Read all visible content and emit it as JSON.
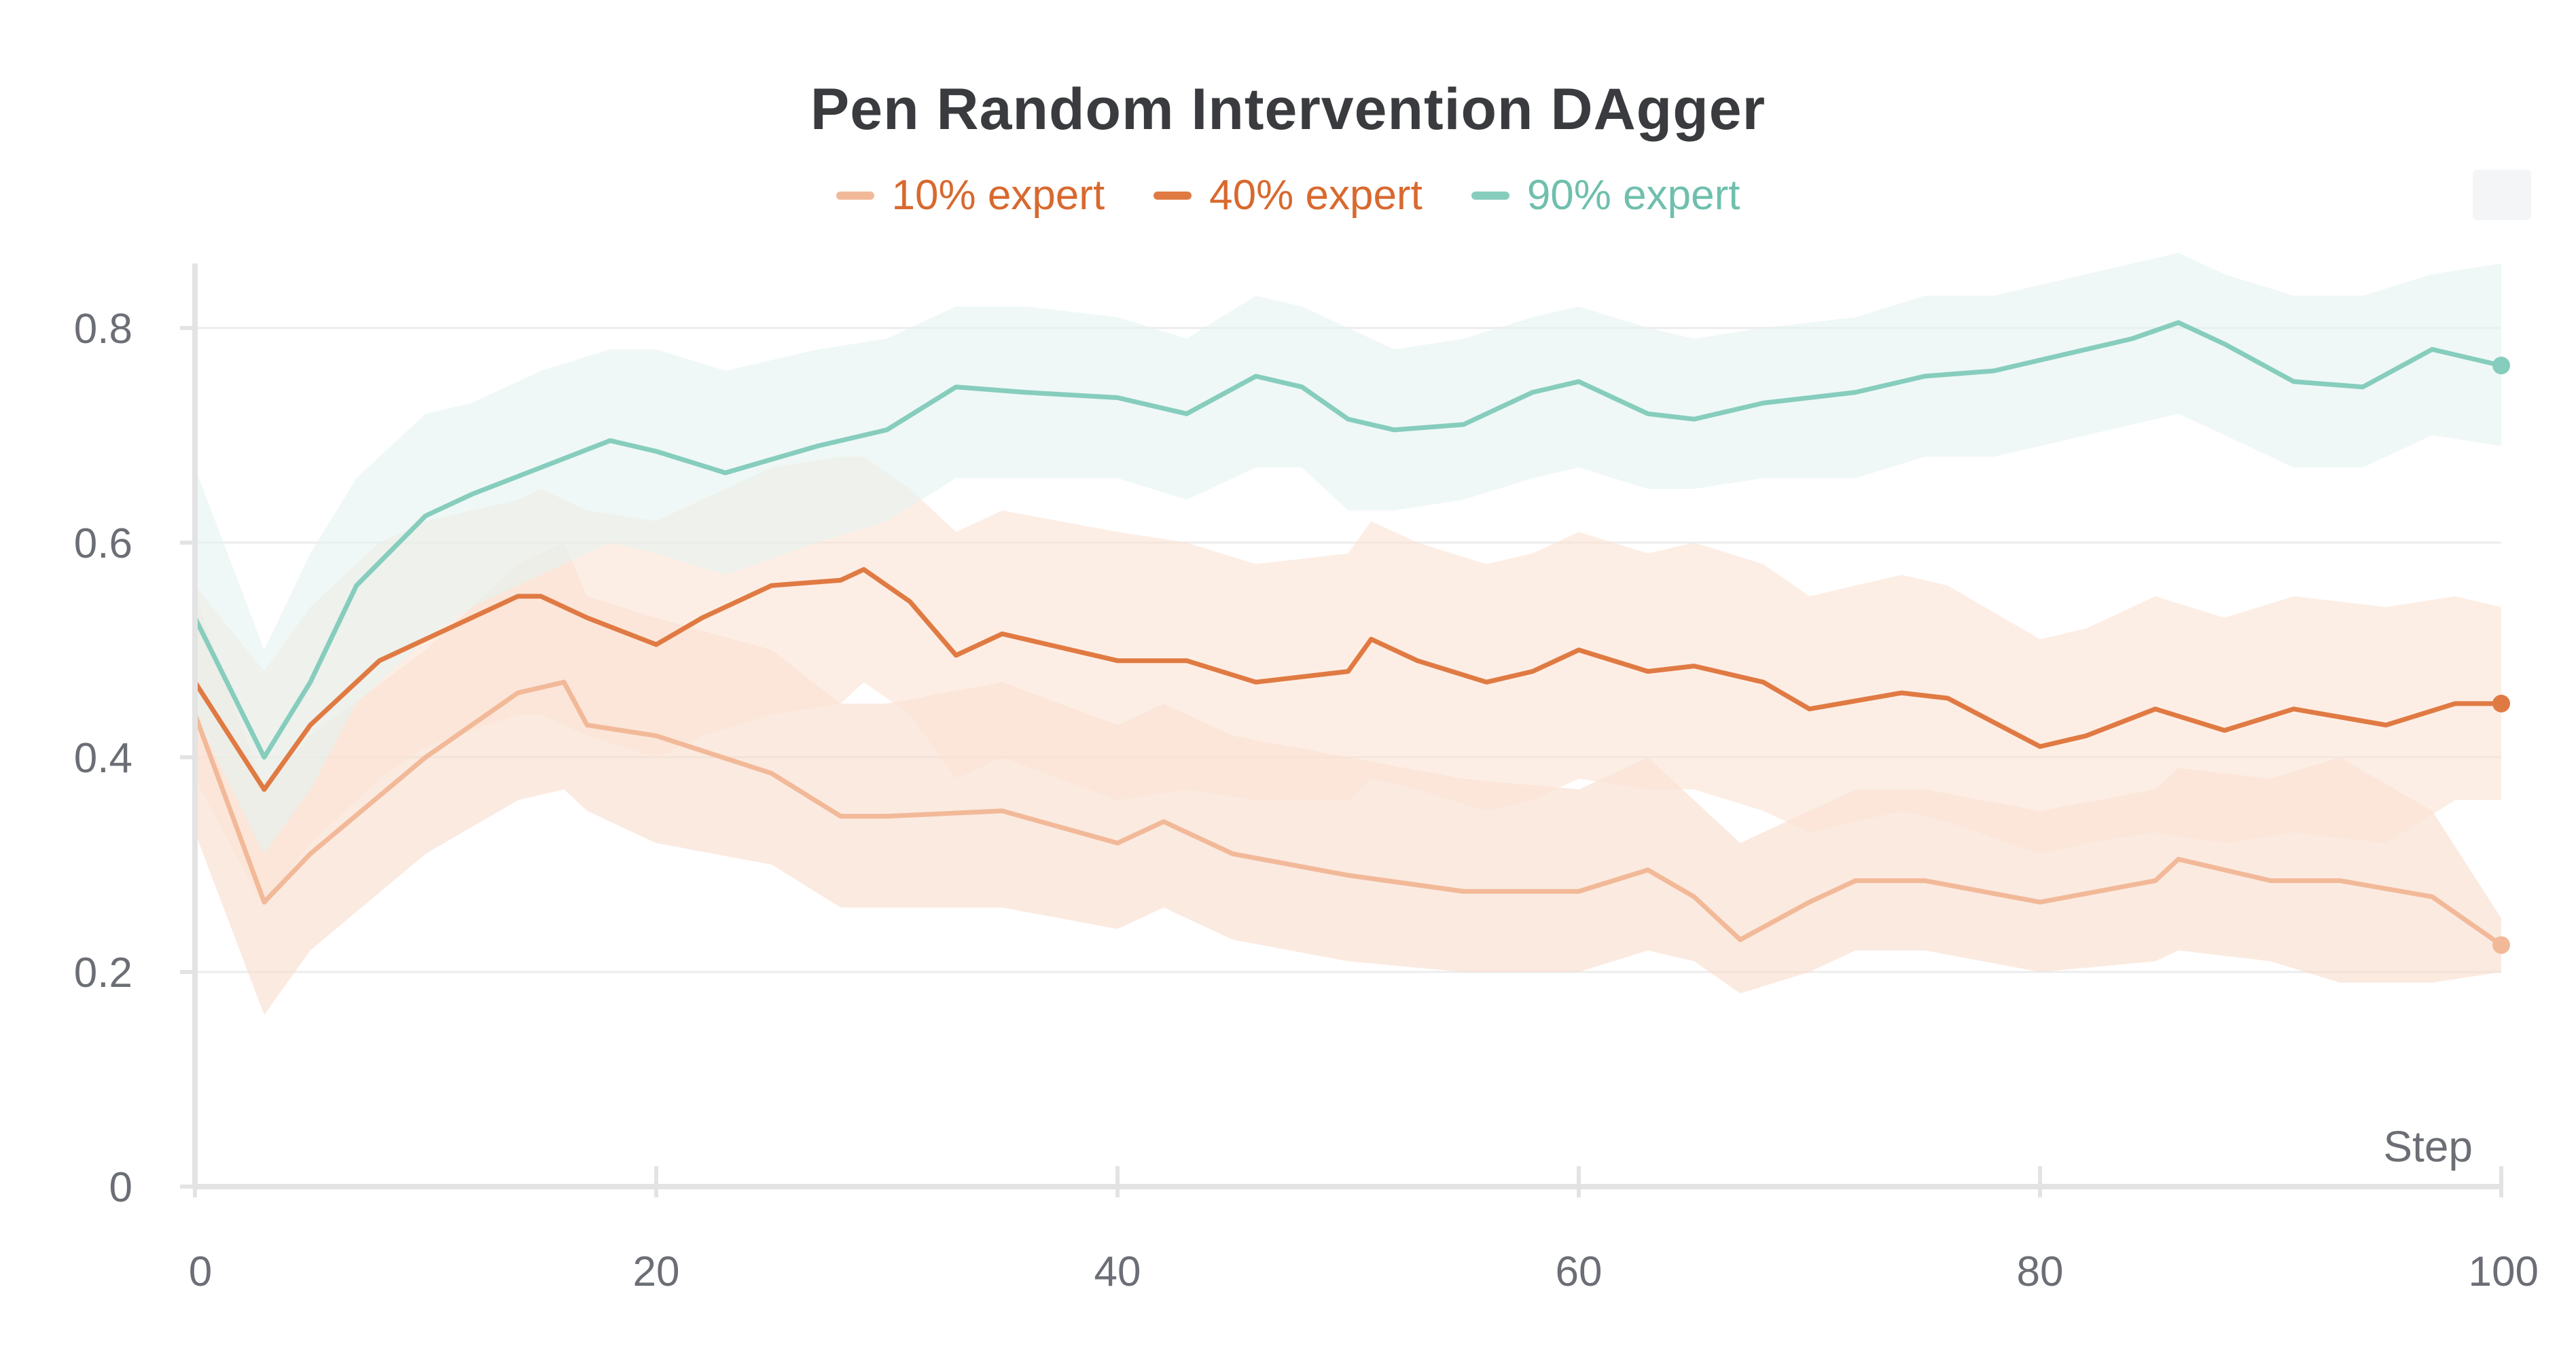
{
  "chart_data": {
    "type": "line",
    "title": "Pen Random Intervention DAgger",
    "xlabel": "Step",
    "ylabel": "",
    "xlim": [
      0,
      100
    ],
    "ylim": [
      0,
      0.86
    ],
    "xticks": [
      0,
      20,
      40,
      60,
      80,
      100
    ],
    "xtick_labels": [
      "0",
      "20",
      "40",
      "60",
      "80",
      "100"
    ],
    "yticks": [
      0,
      0.2,
      0.4,
      0.6,
      0.8
    ],
    "ytick_labels": [
      "0",
      "0.2",
      "0.4",
      "0.6",
      "0.8"
    ],
    "grid": true,
    "legend_position": "top-center",
    "series": [
      {
        "name": "10% expert",
        "color": "#f2b999",
        "band_color": "#f9dccb",
        "x": [
          0,
          3,
          5,
          10,
          14,
          16,
          17,
          20,
          25,
          28,
          30,
          35,
          40,
          42,
          45,
          50,
          55,
          60,
          63,
          65,
          67,
          70,
          72,
          75,
          80,
          85,
          86,
          90,
          93,
          97,
          100
        ],
        "y": [
          0.44,
          0.265,
          0.31,
          0.4,
          0.46,
          0.47,
          0.43,
          0.42,
          0.385,
          0.345,
          0.345,
          0.35,
          0.32,
          0.34,
          0.31,
          0.29,
          0.275,
          0.275,
          0.295,
          0.27,
          0.23,
          0.265,
          0.285,
          0.285,
          0.265,
          0.285,
          0.305,
          0.285,
          0.285,
          0.27,
          0.225
        ],
        "lower": [
          0.33,
          0.16,
          0.22,
          0.31,
          0.36,
          0.37,
          0.35,
          0.32,
          0.3,
          0.26,
          0.26,
          0.26,
          0.24,
          0.26,
          0.23,
          0.21,
          0.2,
          0.2,
          0.22,
          0.21,
          0.18,
          0.2,
          0.22,
          0.22,
          0.2,
          0.21,
          0.22,
          0.21,
          0.19,
          0.19,
          0.2
        ],
        "upper": [
          0.55,
          0.37,
          0.42,
          0.5,
          0.58,
          0.6,
          0.55,
          0.53,
          0.5,
          0.45,
          0.45,
          0.47,
          0.43,
          0.45,
          0.42,
          0.4,
          0.38,
          0.37,
          0.4,
          0.36,
          0.32,
          0.35,
          0.37,
          0.37,
          0.35,
          0.37,
          0.39,
          0.38,
          0.4,
          0.35,
          0.25
        ]
      },
      {
        "name": "40% expert",
        "color": "#e07a43",
        "band_color": "#fbe3d3",
        "x": [
          0,
          3,
          5,
          8,
          10,
          14,
          15,
          17,
          20,
          22,
          25,
          28,
          29,
          31,
          33,
          35,
          40,
          43,
          46,
          50,
          51,
          53,
          56,
          58,
          60,
          63,
          65,
          68,
          70,
          74,
          76,
          80,
          82,
          85,
          88,
          91,
          95,
          98,
          100
        ],
        "y": [
          0.47,
          0.37,
          0.43,
          0.49,
          0.51,
          0.55,
          0.55,
          0.53,
          0.505,
          0.53,
          0.56,
          0.565,
          0.575,
          0.545,
          0.495,
          0.515,
          0.49,
          0.49,
          0.47,
          0.48,
          0.51,
          0.49,
          0.47,
          0.48,
          0.5,
          0.48,
          0.485,
          0.47,
          0.445,
          0.46,
          0.455,
          0.41,
          0.42,
          0.445,
          0.425,
          0.445,
          0.43,
          0.45,
          0.45
        ],
        "lower": [
          0.38,
          0.26,
          0.32,
          0.38,
          0.41,
          0.44,
          0.44,
          0.42,
          0.4,
          0.42,
          0.44,
          0.45,
          0.47,
          0.44,
          0.38,
          0.4,
          0.36,
          0.37,
          0.36,
          0.36,
          0.38,
          0.37,
          0.35,
          0.36,
          0.38,
          0.37,
          0.37,
          0.35,
          0.33,
          0.35,
          0.34,
          0.31,
          0.32,
          0.33,
          0.32,
          0.33,
          0.32,
          0.36,
          0.36
        ],
        "upper": [
          0.56,
          0.48,
          0.54,
          0.6,
          0.62,
          0.64,
          0.65,
          0.63,
          0.62,
          0.64,
          0.67,
          0.68,
          0.68,
          0.65,
          0.61,
          0.63,
          0.61,
          0.6,
          0.58,
          0.59,
          0.62,
          0.6,
          0.58,
          0.59,
          0.61,
          0.59,
          0.6,
          0.58,
          0.55,
          0.57,
          0.56,
          0.51,
          0.52,
          0.55,
          0.53,
          0.55,
          0.54,
          0.55,
          0.54
        ]
      },
      {
        "name": "90% expert",
        "color": "#86cdbd",
        "band_color": "#e4f4f0",
        "x": [
          0,
          3,
          5,
          7,
          10,
          12,
          15,
          18,
          20,
          23,
          27,
          30,
          33,
          36,
          40,
          43,
          46,
          48,
          50,
          52,
          55,
          58,
          60,
          63,
          65,
          68,
          72,
          75,
          78,
          80,
          84,
          86,
          88,
          91,
          94,
          97,
          100
        ],
        "y": [
          0.53,
          0.4,
          0.47,
          0.56,
          0.625,
          0.645,
          0.67,
          0.695,
          0.685,
          0.665,
          0.69,
          0.705,
          0.745,
          0.74,
          0.735,
          0.72,
          0.755,
          0.745,
          0.715,
          0.705,
          0.71,
          0.74,
          0.75,
          0.72,
          0.715,
          0.73,
          0.74,
          0.755,
          0.76,
          0.77,
          0.79,
          0.805,
          0.785,
          0.75,
          0.745,
          0.78,
          0.765
        ],
        "lower": [
          0.44,
          0.31,
          0.37,
          0.45,
          0.51,
          0.54,
          0.57,
          0.6,
          0.59,
          0.57,
          0.6,
          0.62,
          0.66,
          0.66,
          0.66,
          0.64,
          0.67,
          0.67,
          0.63,
          0.63,
          0.64,
          0.66,
          0.67,
          0.65,
          0.65,
          0.66,
          0.66,
          0.68,
          0.68,
          0.69,
          0.71,
          0.72,
          0.7,
          0.67,
          0.67,
          0.7,
          0.69
        ],
        "upper": [
          0.67,
          0.5,
          0.59,
          0.66,
          0.72,
          0.73,
          0.76,
          0.78,
          0.78,
          0.76,
          0.78,
          0.79,
          0.82,
          0.82,
          0.81,
          0.79,
          0.83,
          0.82,
          0.8,
          0.78,
          0.79,
          0.81,
          0.82,
          0.8,
          0.79,
          0.8,
          0.81,
          0.83,
          0.83,
          0.84,
          0.86,
          0.87,
          0.85,
          0.83,
          0.83,
          0.85,
          0.86
        ]
      }
    ]
  }
}
